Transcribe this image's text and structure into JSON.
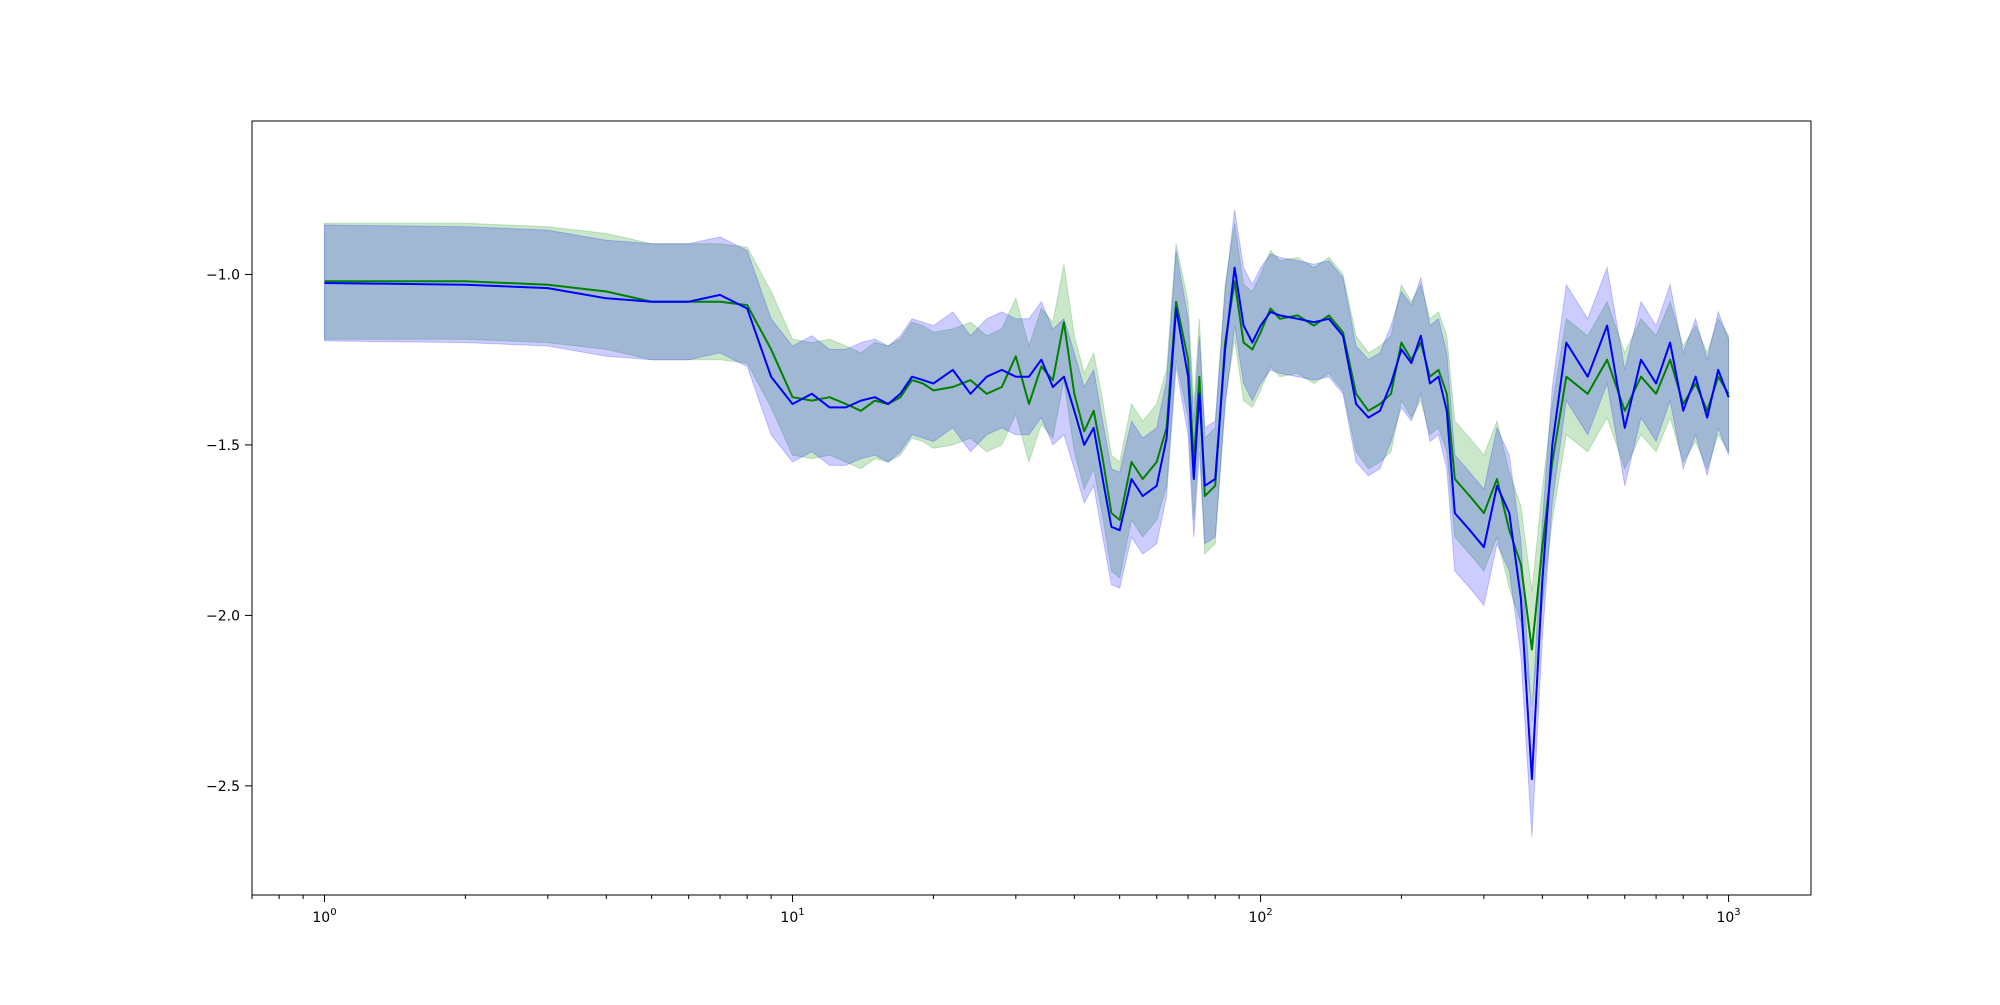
{
  "chart_data": {
    "type": "line",
    "x_scale": "log",
    "xlim": [
      0.7,
      1500
    ],
    "ylim": [
      -2.82,
      -0.55
    ],
    "grid": false,
    "legend": "none",
    "x_ticks": [
      {
        "value": 1,
        "base": "10",
        "exp": "0"
      },
      {
        "value": 10,
        "base": "10",
        "exp": "1"
      },
      {
        "value": 100,
        "base": "10",
        "exp": "2"
      },
      {
        "value": 1000,
        "base": "10",
        "exp": "3"
      }
    ],
    "y_ticks": [
      {
        "value": -1.0,
        "label": "−1.0"
      },
      {
        "value": -1.5,
        "label": "−1.5"
      },
      {
        "value": -2.0,
        "label": "−2.0"
      },
      {
        "value": -2.5,
        "label": "−2.5"
      }
    ],
    "series": [
      {
        "color": "#008000",
        "band_color": "#2ca02c",
        "band_opacity": 0.25,
        "band_halfwidth": 0.17,
        "points": [
          [
            1,
            -1.02
          ],
          [
            2,
            -1.02
          ],
          [
            3,
            -1.03
          ],
          [
            4,
            -1.05
          ],
          [
            5,
            -1.08
          ],
          [
            6,
            -1.08
          ],
          [
            7,
            -1.08
          ],
          [
            8,
            -1.09
          ],
          [
            9,
            -1.22
          ],
          [
            10,
            -1.36
          ],
          [
            11,
            -1.37
          ],
          [
            12,
            -1.36
          ],
          [
            13,
            -1.38
          ],
          [
            14,
            -1.4
          ],
          [
            15,
            -1.37
          ],
          [
            16,
            -1.38
          ],
          [
            17,
            -1.36
          ],
          [
            18,
            -1.31
          ],
          [
            19,
            -1.32
          ],
          [
            20,
            -1.34
          ],
          [
            22,
            -1.33
          ],
          [
            24,
            -1.31
          ],
          [
            26,
            -1.35
          ],
          [
            28,
            -1.33
          ],
          [
            30,
            -1.24
          ],
          [
            32,
            -1.38
          ],
          [
            34,
            -1.27
          ],
          [
            36,
            -1.31
          ],
          [
            38,
            -1.14
          ],
          [
            40,
            -1.35
          ],
          [
            42,
            -1.46
          ],
          [
            44,
            -1.4
          ],
          [
            46,
            -1.54
          ],
          [
            48,
            -1.7
          ],
          [
            50,
            -1.72
          ],
          [
            53,
            -1.55
          ],
          [
            56,
            -1.6
          ],
          [
            60,
            -1.55
          ],
          [
            63,
            -1.45
          ],
          [
            66,
            -1.08
          ],
          [
            70,
            -1.25
          ],
          [
            72,
            -1.55
          ],
          [
            74,
            -1.3
          ],
          [
            76,
            -1.65
          ],
          [
            80,
            -1.62
          ],
          [
            84,
            -1.2
          ],
          [
            88,
            -1.02
          ],
          [
            92,
            -1.2
          ],
          [
            96,
            -1.22
          ],
          [
            100,
            -1.17
          ],
          [
            105,
            -1.1
          ],
          [
            110,
            -1.13
          ],
          [
            120,
            -1.12
          ],
          [
            130,
            -1.15
          ],
          [
            140,
            -1.12
          ],
          [
            150,
            -1.17
          ],
          [
            160,
            -1.35
          ],
          [
            170,
            -1.4
          ],
          [
            180,
            -1.38
          ],
          [
            190,
            -1.35
          ],
          [
            200,
            -1.2
          ],
          [
            210,
            -1.25
          ],
          [
            220,
            -1.2
          ],
          [
            230,
            -1.3
          ],
          [
            240,
            -1.28
          ],
          [
            250,
            -1.35
          ],
          [
            260,
            -1.6
          ],
          [
            280,
            -1.65
          ],
          [
            300,
            -1.7
          ],
          [
            320,
            -1.6
          ],
          [
            340,
            -1.75
          ],
          [
            360,
            -1.85
          ],
          [
            380,
            -2.1
          ],
          [
            400,
            -1.8
          ],
          [
            420,
            -1.55
          ],
          [
            450,
            -1.3
          ],
          [
            500,
            -1.35
          ],
          [
            550,
            -1.25
          ],
          [
            600,
            -1.4
          ],
          [
            650,
            -1.3
          ],
          [
            700,
            -1.35
          ],
          [
            750,
            -1.25
          ],
          [
            800,
            -1.38
          ],
          [
            850,
            -1.32
          ],
          [
            900,
            -1.4
          ],
          [
            950,
            -1.3
          ],
          [
            1000,
            -1.35
          ]
        ]
      },
      {
        "color": "#0000ff",
        "band_color": "#0000ff",
        "band_opacity": 0.2,
        "band_halfwidth": 0.17,
        "points": [
          [
            1,
            -1.025
          ],
          [
            2,
            -1.03
          ],
          [
            3,
            -1.04
          ],
          [
            4,
            -1.07
          ],
          [
            5,
            -1.08
          ],
          [
            6,
            -1.08
          ],
          [
            7,
            -1.06
          ],
          [
            8,
            -1.1
          ],
          [
            9,
            -1.3
          ],
          [
            10,
            -1.38
          ],
          [
            11,
            -1.35
          ],
          [
            12,
            -1.39
          ],
          [
            13,
            -1.39
          ],
          [
            14,
            -1.37
          ],
          [
            15,
            -1.36
          ],
          [
            16,
            -1.38
          ],
          [
            17,
            -1.35
          ],
          [
            18,
            -1.3
          ],
          [
            19,
            -1.31
          ],
          [
            20,
            -1.32
          ],
          [
            22,
            -1.28
          ],
          [
            24,
            -1.35
          ],
          [
            26,
            -1.3
          ],
          [
            28,
            -1.28
          ],
          [
            30,
            -1.3
          ],
          [
            32,
            -1.3
          ],
          [
            34,
            -1.25
          ],
          [
            36,
            -1.33
          ],
          [
            38,
            -1.3
          ],
          [
            40,
            -1.4
          ],
          [
            42,
            -1.5
          ],
          [
            44,
            -1.45
          ],
          [
            46,
            -1.6
          ],
          [
            48,
            -1.74
          ],
          [
            50,
            -1.75
          ],
          [
            53,
            -1.6
          ],
          [
            56,
            -1.65
          ],
          [
            60,
            -1.62
          ],
          [
            63,
            -1.48
          ],
          [
            66,
            -1.1
          ],
          [
            70,
            -1.3
          ],
          [
            72,
            -1.6
          ],
          [
            74,
            -1.35
          ],
          [
            76,
            -1.62
          ],
          [
            80,
            -1.6
          ],
          [
            84,
            -1.22
          ],
          [
            88,
            -0.98
          ],
          [
            92,
            -1.15
          ],
          [
            96,
            -1.2
          ],
          [
            100,
            -1.15
          ],
          [
            105,
            -1.11
          ],
          [
            110,
            -1.12
          ],
          [
            120,
            -1.13
          ],
          [
            130,
            -1.14
          ],
          [
            140,
            -1.13
          ],
          [
            150,
            -1.18
          ],
          [
            160,
            -1.38
          ],
          [
            170,
            -1.42
          ],
          [
            180,
            -1.4
          ],
          [
            190,
            -1.32
          ],
          [
            200,
            -1.22
          ],
          [
            210,
            -1.26
          ],
          [
            220,
            -1.18
          ],
          [
            230,
            -1.32
          ],
          [
            240,
            -1.3
          ],
          [
            250,
            -1.4
          ],
          [
            260,
            -1.7
          ],
          [
            280,
            -1.75
          ],
          [
            300,
            -1.8
          ],
          [
            320,
            -1.62
          ],
          [
            340,
            -1.7
          ],
          [
            360,
            -1.95
          ],
          [
            380,
            -2.48
          ],
          [
            400,
            -1.9
          ],
          [
            420,
            -1.5
          ],
          [
            450,
            -1.2
          ],
          [
            500,
            -1.3
          ],
          [
            550,
            -1.15
          ],
          [
            600,
            -1.45
          ],
          [
            650,
            -1.25
          ],
          [
            700,
            -1.32
          ],
          [
            750,
            -1.2
          ],
          [
            800,
            -1.4
          ],
          [
            850,
            -1.3
          ],
          [
            900,
            -1.42
          ],
          [
            950,
            -1.28
          ],
          [
            1000,
            -1.36
          ]
        ]
      }
    ]
  }
}
